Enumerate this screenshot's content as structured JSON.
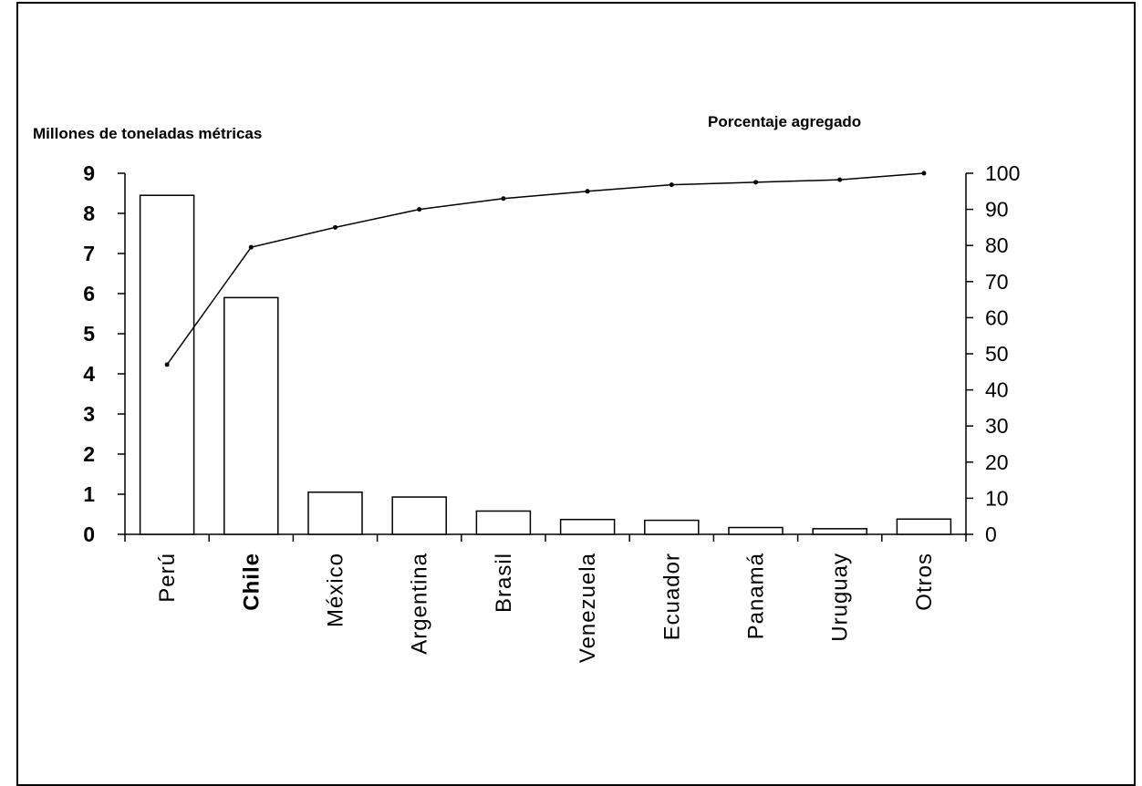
{
  "chart_data": {
    "type": "bar",
    "categories": [
      "Perú",
      "Chile",
      "México",
      "Argentina",
      "Brasil",
      "Venezuela",
      "Ecuador",
      "Panamá",
      "Uruguay",
      "Otros"
    ],
    "series": [
      {
        "type": "bar",
        "axis": "left",
        "values": [
          8.45,
          5.9,
          1.05,
          0.93,
          0.58,
          0.37,
          0.35,
          0.17,
          0.14,
          0.38
        ]
      },
      {
        "type": "line",
        "axis": "right",
        "values": [
          47,
          79.5,
          85,
          90,
          93,
          95,
          96.8,
          97.5,
          98.2,
          100
        ]
      }
    ],
    "ylabel": "Millones de toneladas métricas",
    "ylabel_right": "Porcentaje agregado",
    "ylim": [
      0,
      9
    ],
    "yticks": [
      "0",
      "1",
      "2",
      "3",
      "4",
      "5",
      "6",
      "7",
      "8",
      "9"
    ],
    "ylim_right": [
      0,
      100
    ],
    "yticks_right": [
      "0",
      "10",
      "20",
      "30",
      "40",
      "50",
      "60",
      "70",
      "80",
      "90",
      "100"
    ],
    "bold_categories": [
      "Chile"
    ],
    "grid": false,
    "legend": "none"
  }
}
